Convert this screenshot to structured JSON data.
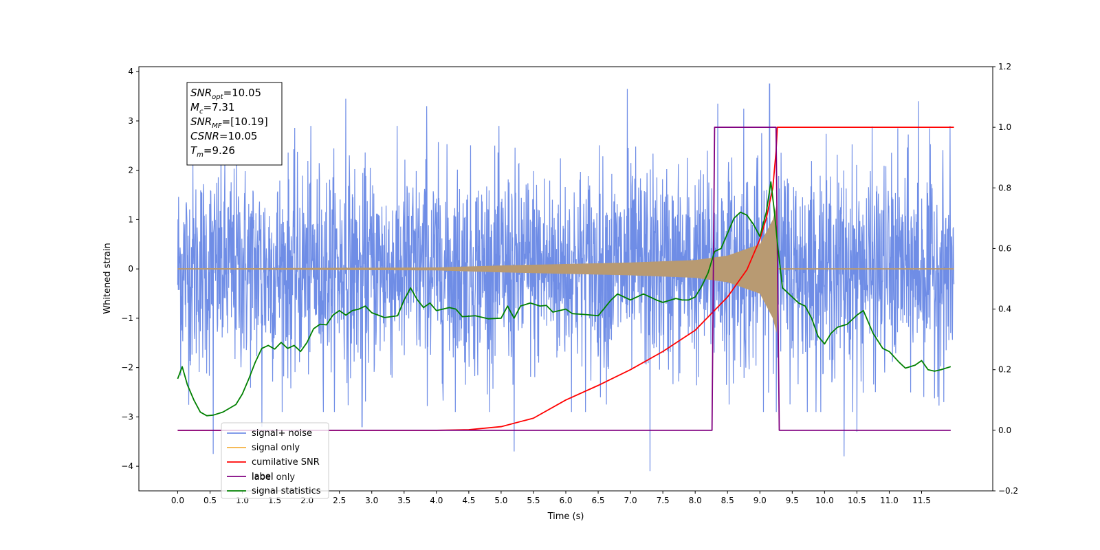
{
  "chart_data": {
    "type": "line",
    "xlabel": "Time (s)",
    "ylabel": "Whitened strain",
    "xlim": [
      -0.6,
      12.6
    ],
    "ylim_left": [
      -4.5,
      4.1
    ],
    "ylim_right": [
      -0.2,
      1.2
    ],
    "x_ticks": [
      "0.0",
      "0.5",
      "1.0",
      "1.5",
      "2.0",
      "2.5",
      "3.0",
      "3.5",
      "4.0",
      "4.5",
      "5.0",
      "5.5",
      "6.0",
      "6.5",
      "7.0",
      "7.5",
      "8.0",
      "8.5",
      "9.0",
      "9.5",
      "10.0",
      "10.5",
      "11.0",
      "11.5"
    ],
    "y_left_ticks": [
      "−4",
      "−3",
      "−2",
      "−1",
      "0",
      "1",
      "2",
      "3",
      "4"
    ],
    "y_right_ticks": [
      "−0.2",
      "0.0",
      "0.2",
      "0.4",
      "0.6",
      "0.8",
      "1.0",
      "1.2"
    ],
    "grid": false,
    "legend_position": "lower-left",
    "annotation": [
      {
        "base": "SNR",
        "sub": "opt",
        "value": "=10.05"
      },
      {
        "base": "M",
        "sub": "c",
        "value": "=7.31"
      },
      {
        "base": "SNR",
        "sub": "MF",
        "value": "=[10.19]"
      },
      {
        "base": "CSNR",
        "sub": "",
        "value": "=10.05"
      },
      {
        "base": "T",
        "sub": "m",
        "value": "=9.26"
      }
    ],
    "colors": {
      "noise": "#6f8de6",
      "signal": "#f5b041",
      "signal_overlap": "#b89a72",
      "csnr": "#ff0000",
      "label": "#800080",
      "stats": "#008000"
    },
    "series": [
      {
        "name": "signal+ noise",
        "axis": "left",
        "kind": "gaussian-noise",
        "x_range": [
          0.0,
          12.0
        ],
        "std": 1.05,
        "peak_samples": [
          {
            "x": 0.55,
            "y": -3.75
          },
          {
            "x": 1.3,
            "y": -3.2
          },
          {
            "x": 2.6,
            "y": 3.45
          },
          {
            "x": 2.85,
            "y": -3.2
          },
          {
            "x": 3.85,
            "y": 3.3
          },
          {
            "x": 5.2,
            "y": -3.7
          },
          {
            "x": 6.95,
            "y": 3.65
          },
          {
            "x": 7.3,
            "y": -4.1
          },
          {
            "x": 8.35,
            "y": 3.35
          },
          {
            "x": 8.75,
            "y": 3.25
          },
          {
            "x": 9.15,
            "y": 3.75
          },
          {
            "x": 10.3,
            "y": -3.8
          },
          {
            "x": 10.5,
            "y": -3.3
          },
          {
            "x": 11.45,
            "y": 3.4
          }
        ]
      },
      {
        "name": "signal only",
        "axis": "left",
        "kind": "chirp",
        "merger_time": 9.26,
        "amplitude_envelope": [
          {
            "x": 0.0,
            "y": 0.01
          },
          {
            "x": 4.0,
            "y": 0.03
          },
          {
            "x": 5.0,
            "y": 0.07
          },
          {
            "x": 6.0,
            "y": 0.1
          },
          {
            "x": 7.0,
            "y": 0.13
          },
          {
            "x": 8.0,
            "y": 0.18
          },
          {
            "x": 8.5,
            "y": 0.27
          },
          {
            "x": 9.0,
            "y": 0.5
          },
          {
            "x": 9.2,
            "y": 1.0
          },
          {
            "x": 9.26,
            "y": 1.3
          },
          {
            "x": 9.28,
            "y": 0.0
          },
          {
            "x": 12.0,
            "y": 0.0
          }
        ]
      },
      {
        "name": "cumilative SNR",
        "axis": "right",
        "points": [
          [
            0.0,
            0.0
          ],
          [
            4.0,
            0.0
          ],
          [
            4.5,
            0.002
          ],
          [
            5.0,
            0.012
          ],
          [
            5.5,
            0.04
          ],
          [
            6.0,
            0.1
          ],
          [
            6.5,
            0.148
          ],
          [
            7.0,
            0.2
          ],
          [
            7.5,
            0.26
          ],
          [
            8.0,
            0.33
          ],
          [
            8.5,
            0.44
          ],
          [
            8.8,
            0.53
          ],
          [
            9.0,
            0.63
          ],
          [
            9.1,
            0.7
          ],
          [
            9.2,
            0.8
          ],
          [
            9.25,
            0.92
          ],
          [
            9.27,
            1.0
          ],
          [
            12.0,
            1.0
          ]
        ]
      },
      {
        "name": "label",
        "axis": "right",
        "points": [
          [
            0.0,
            0.0
          ],
          [
            8.26,
            0.0
          ],
          [
            8.3,
            1.0
          ],
          [
            9.25,
            1.0
          ],
          [
            9.3,
            0.0
          ],
          [
            11.95,
            0.0
          ]
        ]
      },
      {
        "name": "label only",
        "axis": "right",
        "hidden": true,
        "points": []
      },
      {
        "name": "signal statistics",
        "axis": "right",
        "points": [
          [
            0.0,
            0.17
          ],
          [
            0.07,
            0.21
          ],
          [
            0.15,
            0.15
          ],
          [
            0.25,
            0.1
          ],
          [
            0.35,
            0.06
          ],
          [
            0.45,
            0.048
          ],
          [
            0.55,
            0.05
          ],
          [
            0.7,
            0.06
          ],
          [
            0.9,
            0.085
          ],
          [
            1.0,
            0.12
          ],
          [
            1.1,
            0.17
          ],
          [
            1.2,
            0.225
          ],
          [
            1.3,
            0.27
          ],
          [
            1.4,
            0.28
          ],
          [
            1.5,
            0.268
          ],
          [
            1.6,
            0.29
          ],
          [
            1.7,
            0.27
          ],
          [
            1.8,
            0.28
          ],
          [
            1.9,
            0.26
          ],
          [
            2.0,
            0.29
          ],
          [
            2.1,
            0.335
          ],
          [
            2.2,
            0.35
          ],
          [
            2.3,
            0.348
          ],
          [
            2.4,
            0.38
          ],
          [
            2.5,
            0.395
          ],
          [
            2.6,
            0.38
          ],
          [
            2.7,
            0.395
          ],
          [
            2.8,
            0.4
          ],
          [
            2.9,
            0.41
          ],
          [
            3.0,
            0.388
          ],
          [
            3.2,
            0.372
          ],
          [
            3.4,
            0.378
          ],
          [
            3.5,
            0.43
          ],
          [
            3.6,
            0.47
          ],
          [
            3.7,
            0.432
          ],
          [
            3.8,
            0.405
          ],
          [
            3.9,
            0.42
          ],
          [
            4.0,
            0.395
          ],
          [
            4.2,
            0.405
          ],
          [
            4.3,
            0.4
          ],
          [
            4.4,
            0.375
          ],
          [
            4.6,
            0.378
          ],
          [
            4.8,
            0.368
          ],
          [
            5.0,
            0.37
          ],
          [
            5.1,
            0.41
          ],
          [
            5.2,
            0.37
          ],
          [
            5.3,
            0.41
          ],
          [
            5.45,
            0.42
          ],
          [
            5.6,
            0.41
          ],
          [
            5.7,
            0.412
          ],
          [
            5.8,
            0.39
          ],
          [
            6.0,
            0.4
          ],
          [
            6.1,
            0.385
          ],
          [
            6.3,
            0.382
          ],
          [
            6.5,
            0.378
          ],
          [
            6.7,
            0.43
          ],
          [
            6.8,
            0.45
          ],
          [
            6.9,
            0.44
          ],
          [
            7.0,
            0.43
          ],
          [
            7.2,
            0.45
          ],
          [
            7.4,
            0.43
          ],
          [
            7.5,
            0.422
          ],
          [
            7.7,
            0.435
          ],
          [
            7.8,
            0.43
          ],
          [
            7.9,
            0.43
          ],
          [
            8.0,
            0.44
          ],
          [
            8.1,
            0.475
          ],
          [
            8.2,
            0.52
          ],
          [
            8.3,
            0.59
          ],
          [
            8.4,
            0.6
          ],
          [
            8.5,
            0.65
          ],
          [
            8.6,
            0.7
          ],
          [
            8.7,
            0.72
          ],
          [
            8.8,
            0.71
          ],
          [
            8.9,
            0.68
          ],
          [
            9.0,
            0.64
          ],
          [
            9.1,
            0.72
          ],
          [
            9.17,
            0.82
          ],
          [
            9.22,
            0.73
          ],
          [
            9.28,
            0.6
          ],
          [
            9.35,
            0.47
          ],
          [
            9.45,
            0.45
          ],
          [
            9.6,
            0.42
          ],
          [
            9.7,
            0.41
          ],
          [
            9.8,
            0.37
          ],
          [
            9.9,
            0.31
          ],
          [
            10.0,
            0.285
          ],
          [
            10.1,
            0.32
          ],
          [
            10.2,
            0.34
          ],
          [
            10.35,
            0.35
          ],
          [
            10.5,
            0.38
          ],
          [
            10.6,
            0.395
          ],
          [
            10.75,
            0.32
          ],
          [
            10.9,
            0.27
          ],
          [
            11.0,
            0.26
          ],
          [
            11.15,
            0.225
          ],
          [
            11.25,
            0.205
          ],
          [
            11.4,
            0.215
          ],
          [
            11.5,
            0.23
          ],
          [
            11.6,
            0.2
          ],
          [
            11.7,
            0.195
          ],
          [
            11.8,
            0.2
          ],
          [
            11.95,
            0.21
          ]
        ]
      }
    ]
  }
}
